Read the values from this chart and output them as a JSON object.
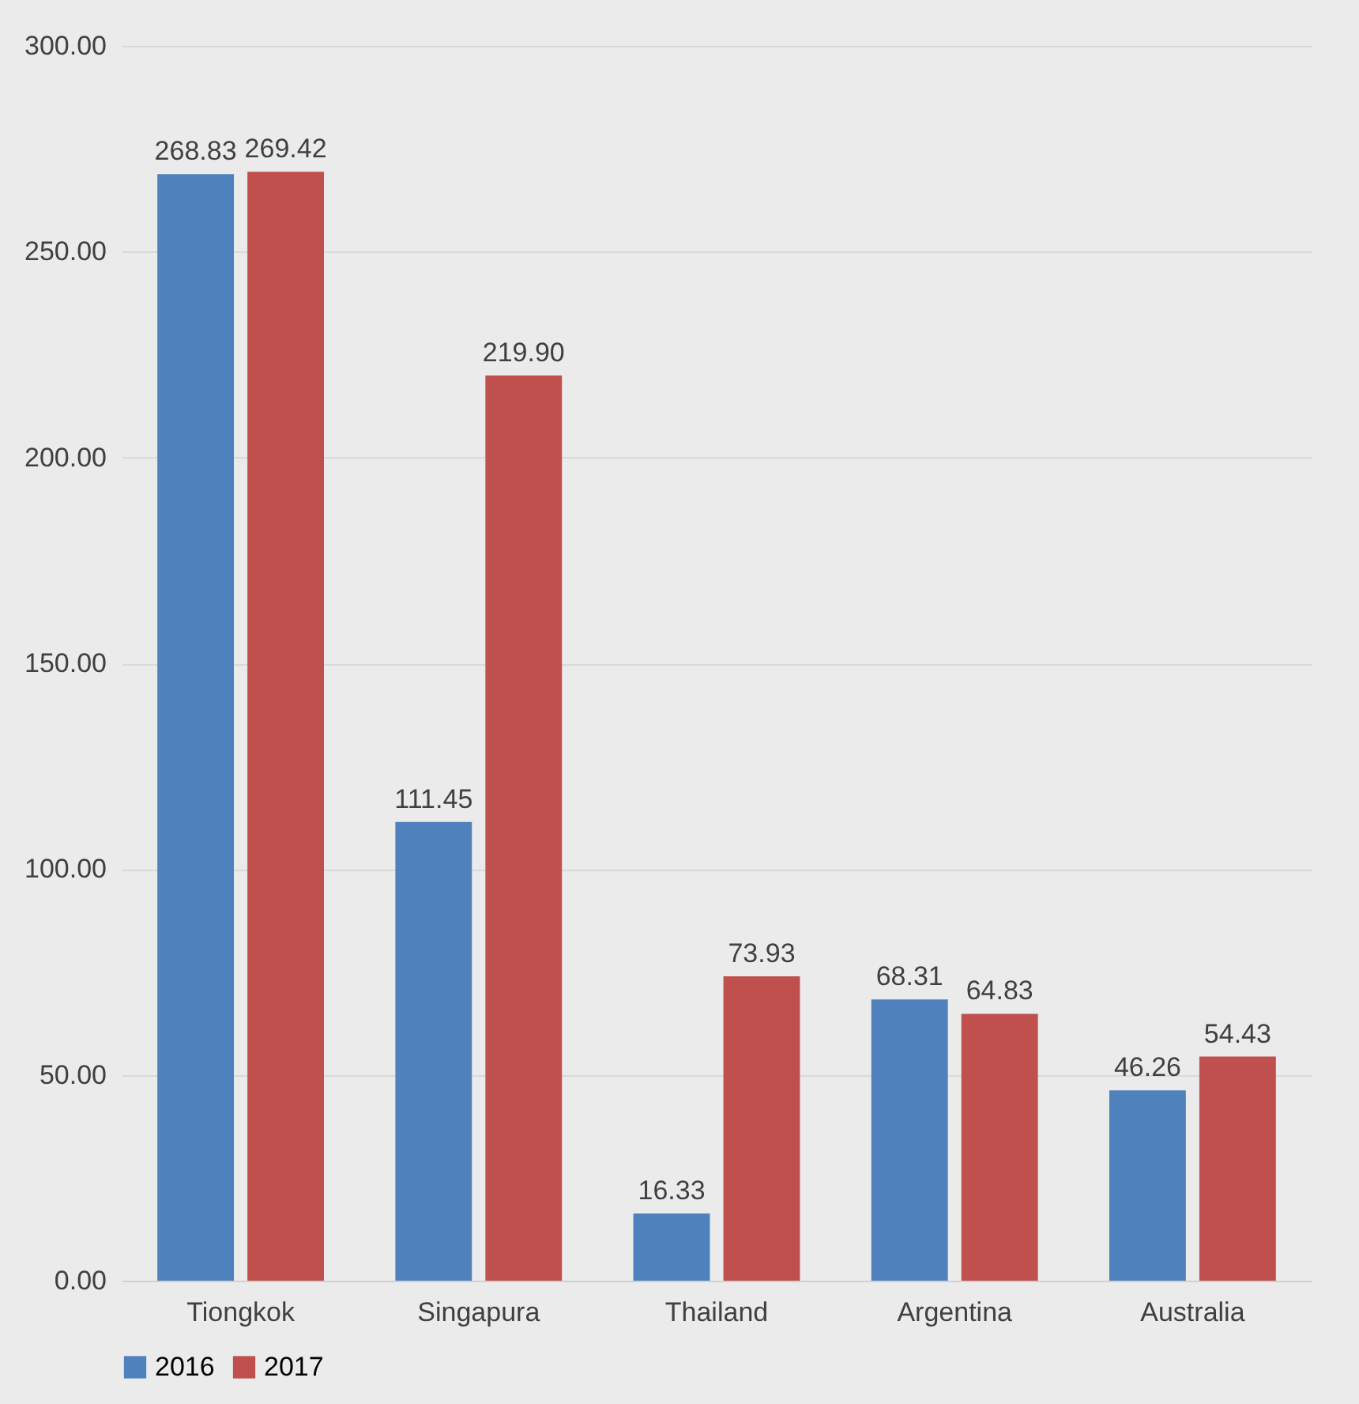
{
  "chart_data": {
    "type": "bar",
    "categories": [
      "Tiongkok",
      "Singapura",
      "Thailand",
      "Argentina",
      "Australia"
    ],
    "series": [
      {
        "name": "2016",
        "color": "#4f81bd",
        "values": [
          268.83,
          111.45,
          16.33,
          68.31,
          46.26
        ],
        "value_labels": [
          "268.83",
          "111.45",
          "16.33",
          "68.31",
          "46.26"
        ]
      },
      {
        "name": "2017",
        "color": "#c0504d",
        "values": [
          269.42,
          219.9,
          73.93,
          64.83,
          54.43
        ],
        "value_labels": [
          "269.42",
          "219.90",
          "73.93",
          "64.83",
          "54.43"
        ]
      }
    ],
    "ylim": [
      0,
      300
    ],
    "yticks": [
      {
        "value": 0,
        "label": "0.00"
      },
      {
        "value": 50,
        "label": "50.00"
      },
      {
        "value": 100,
        "label": "100.00"
      },
      {
        "value": 150,
        "label": "150.00"
      },
      {
        "value": 200,
        "label": "200.00"
      },
      {
        "value": 250,
        "label": "250.00"
      },
      {
        "value": 300,
        "label": "300.00"
      }
    ],
    "grid": "y",
    "legend": "bottom"
  }
}
